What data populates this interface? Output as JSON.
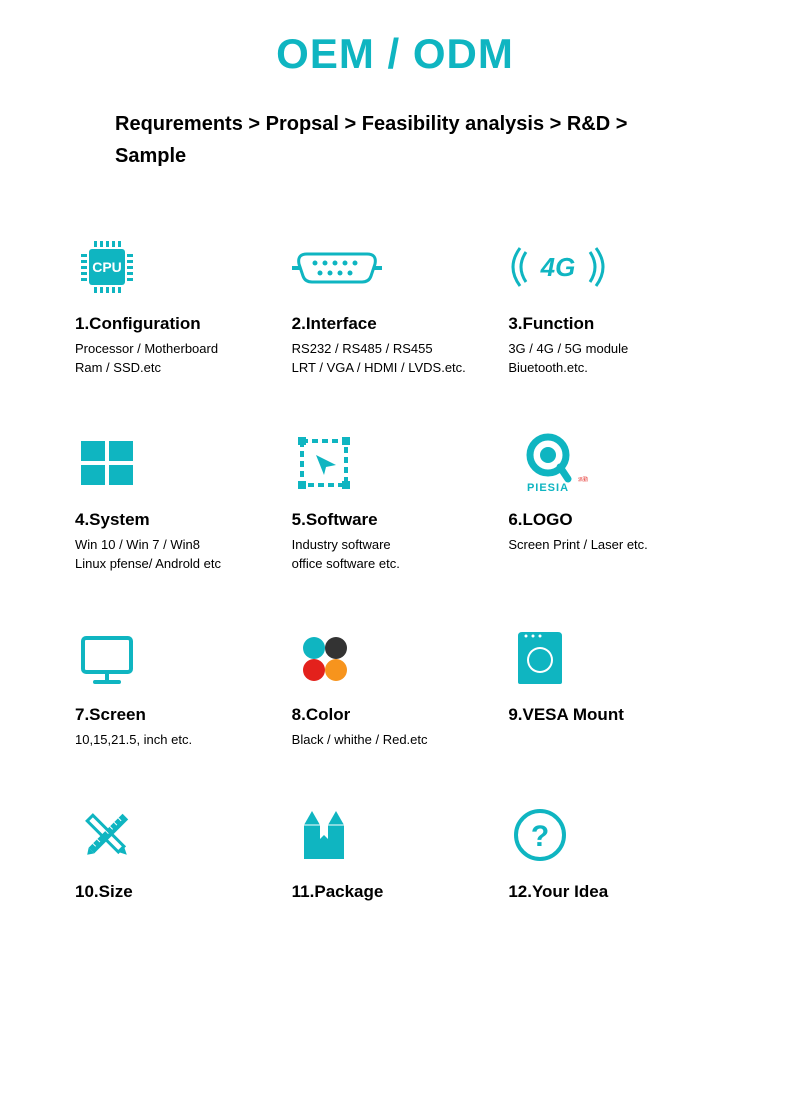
{
  "colors": {
    "accent": "#0fb5c1",
    "text": "#000000",
    "bg": "#ffffff",
    "dark": "#333333",
    "red": "#e3211c",
    "orange": "#f7941d"
  },
  "fonts": {
    "title_size": 42,
    "breadcrumb_size": 20,
    "item_title_size": 17,
    "item_desc_size": 13
  },
  "title": "OEM / ODM",
  "breadcrumb": "Requrements > Propsal > Feasibility analysis > R&D > Sample",
  "items": [
    {
      "icon": "cpu",
      "title": "1.Configuration",
      "desc": "Processor / Motherboard\nRam / SSD.etc"
    },
    {
      "icon": "interface",
      "title": "2.Interface",
      "desc": "RS232 / RS485 / RS455\nLRT / VGA / HDMI / LVDS.etc."
    },
    {
      "icon": "4g",
      "title": "3.Function",
      "desc": "3G / 4G / 5G module\nBiuetooth.etc."
    },
    {
      "icon": "windows",
      "title": "4.System",
      "desc": "Win 10 / Win 7 / Win8\nLinux pfense/ Androld etc"
    },
    {
      "icon": "software",
      "title": "5.Software",
      "desc": "Industry software\noffice software etc."
    },
    {
      "icon": "logo",
      "title": "6.LOGO",
      "desc": "Screen Print / Laser etc."
    },
    {
      "icon": "screen",
      "title": "7.Screen",
      "desc": "10,15,21.5, inch etc."
    },
    {
      "icon": "color",
      "title": "8.Color",
      "desc": "Black / whithe / Red.etc"
    },
    {
      "icon": "vesa",
      "title": "9.VESA Mount",
      "desc": ""
    },
    {
      "icon": "size",
      "title": "10.Size",
      "desc": ""
    },
    {
      "icon": "package",
      "title": "11.Package",
      "desc": ""
    },
    {
      "icon": "idea",
      "title": "12.Your Idea",
      "desc": ""
    }
  ]
}
